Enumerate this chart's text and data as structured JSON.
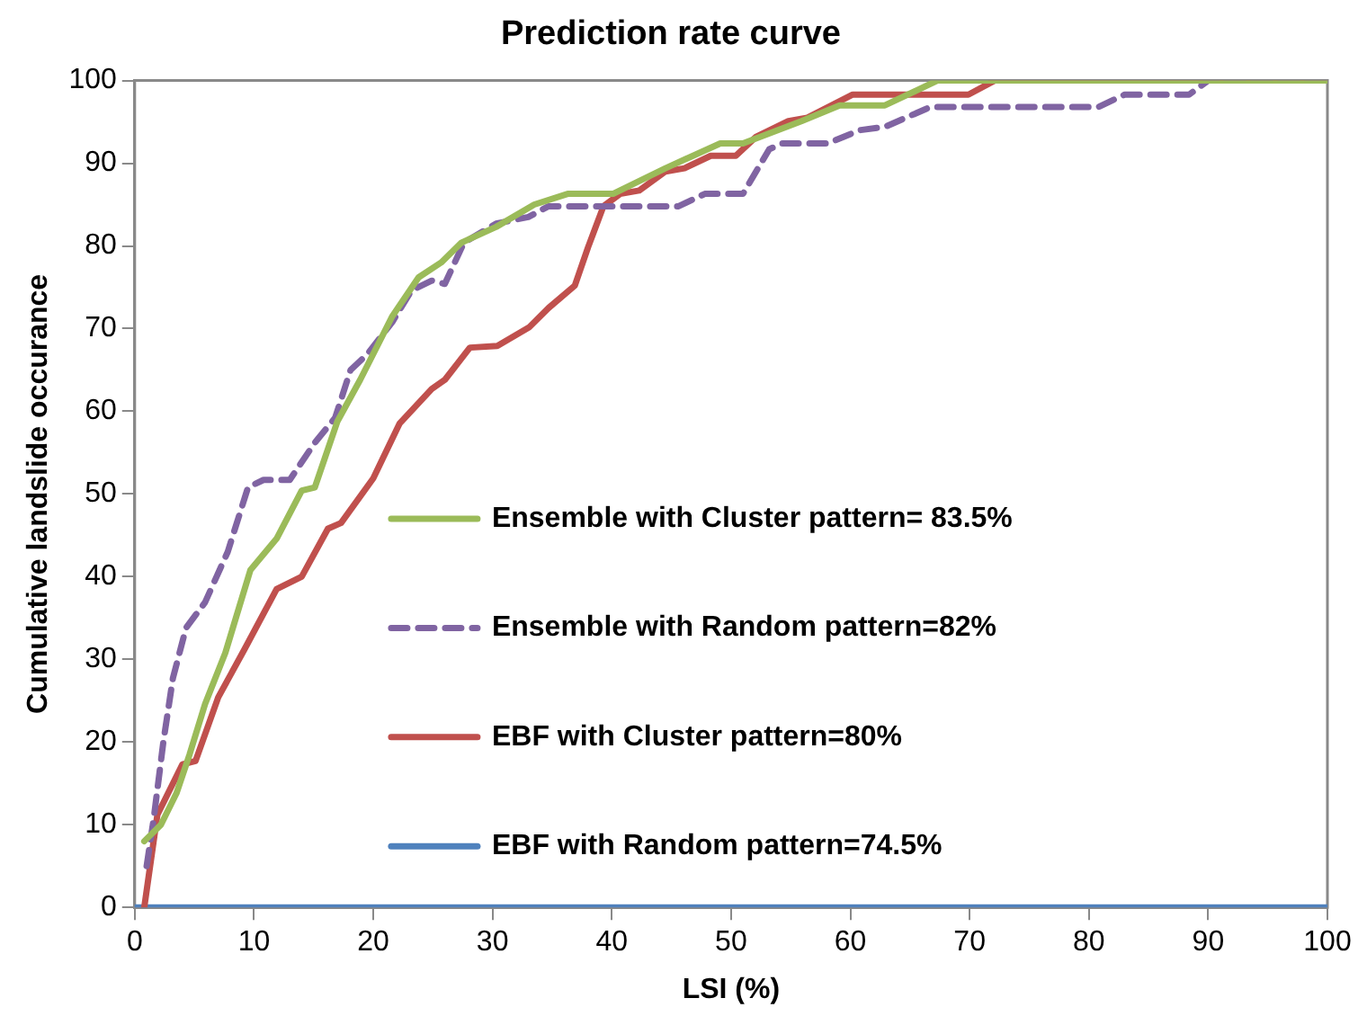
{
  "chart_data": {
    "type": "line",
    "title": "Prediction rate curve",
    "xlabel": "LSI (%)",
    "ylabel": "Cumulative landslide occurance",
    "xlim": [
      0,
      100
    ],
    "xticks": [
      0,
      10,
      20,
      30,
      40,
      50,
      60,
      70,
      80,
      90,
      100
    ],
    "ylim": [
      0,
      100
    ],
    "yticks": [
      0,
      10,
      20,
      30,
      40,
      50,
      60,
      70,
      80,
      90,
      100
    ],
    "grid": false,
    "legend": "bottom right",
    "marker": "none",
    "series": [
      {
        "name": "Ensemble with Cluster pattern= 83.5%",
        "color": "#9bbb59",
        "line_style": "solid",
        "x": [
          0.8,
          2.2,
          3.5,
          4.6,
          5.9,
          7.6,
          9.7,
          11.9,
          14,
          15.1,
          17,
          18.9,
          21.6,
          23.8,
          25.7,
          27.4,
          30.3,
          33.5,
          36.3,
          40.1,
          44.5,
          49.1,
          51,
          55.9,
          59.1,
          62.9,
          67.3,
          100
        ],
        "values": [
          8,
          10,
          13.8,
          18.5,
          24.6,
          30.8,
          40.8,
          44.6,
          50.4,
          50.8,
          58.8,
          63.8,
          71.5,
          76.2,
          78,
          80.4,
          82.3,
          85,
          86.3,
          86.3,
          89.4,
          92.4,
          92.4,
          95.1,
          97,
          97,
          100,
          100
        ]
      },
      {
        "name": "Ensemble with Random pattern=82%",
        "color": "#8064a2",
        "line_style": "dashed",
        "x": [
          1,
          1.6,
          2.4,
          3.2,
          4.3,
          5.9,
          7.8,
          9.5,
          10.8,
          13,
          15.1,
          16.8,
          18.1,
          19.5,
          21.6,
          23.2,
          24.9,
          26,
          27.6,
          30.3,
          33,
          34.7,
          45.6,
          47.8,
          51,
          53.2,
          54.3,
          58.1,
          60.8,
          62.9,
          66.7,
          80.8,
          83,
          88.4,
          90,
          100
        ],
        "values": [
          5,
          10.8,
          20,
          27.7,
          33.8,
          36.9,
          43,
          50.8,
          51.7,
          51.7,
          56.2,
          59.2,
          65,
          66.9,
          70.8,
          74.6,
          75.8,
          75.4,
          80.4,
          82.7,
          83.5,
          84.8,
          84.8,
          86.3,
          86.3,
          91.7,
          92.4,
          92.4,
          94,
          94.4,
          96.8,
          96.8,
          98.3,
          98.3,
          100,
          100
        ]
      },
      {
        "name": "EBF with Cluster pattern=80%",
        "color": "#c0504d",
        "line_style": "solid",
        "x": [
          0.8,
          1.9,
          4,
          5.1,
          7,
          9.2,
          11.9,
          14,
          16.2,
          17.3,
          20,
          22.2,
          24.9,
          26,
          28.1,
          30.4,
          33.1,
          34.7,
          36.9,
          38,
          39.3,
          40.7,
          42.3,
          44.5,
          46.1,
          48.3,
          50.4,
          52.1,
          54.8,
          56.4,
          60.2,
          69.9,
          72.1,
          100
        ],
        "values": [
          0,
          11.2,
          17.3,
          17.7,
          25.4,
          31.2,
          38.5,
          40,
          45.8,
          46.5,
          51.9,
          58.5,
          62.7,
          63.8,
          67.7,
          67.9,
          70.2,
          72.5,
          75.2,
          79.8,
          84.8,
          86.3,
          86.7,
          89,
          89.4,
          90.9,
          90.9,
          93.2,
          95.1,
          95.5,
          98.3,
          98.3,
          100,
          100
        ]
      },
      {
        "name": "EBF with Random pattern=74.5%",
        "color": "#4f81bd",
        "line_style": "solid",
        "x": [
          0,
          100
        ],
        "values": [
          0,
          0
        ]
      }
    ]
  }
}
